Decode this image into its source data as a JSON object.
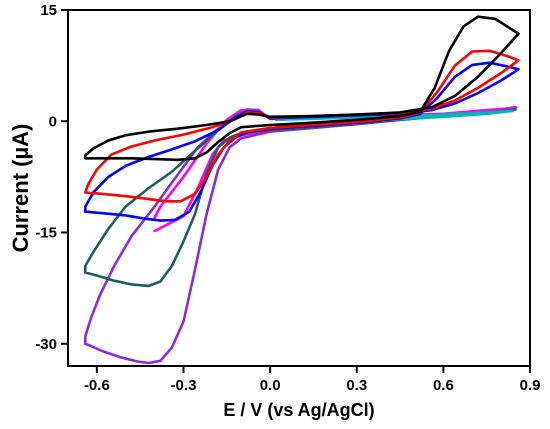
{
  "chart_data": {
    "type": "line",
    "title": "",
    "xlabel": "E / V (vs Ag/AgCl)",
    "ylabel": "Current (µA)",
    "xlim": [
      -0.7,
      0.9
    ],
    "ylim": [
      -33,
      15
    ],
    "xticks": [
      -0.6,
      -0.3,
      0.0,
      0.3,
      0.6,
      0.9
    ],
    "xtick_labels": [
      "-0.6",
      "-0.3",
      "0.0",
      "0.3",
      "0.6",
      "0.9"
    ],
    "yticks": [
      15,
      0,
      -15,
      -30
    ],
    "ytick_labels": [
      "15",
      "0",
      "-15",
      "-30"
    ],
    "grid": false,
    "legend": "none",
    "series": [
      {
        "color": "#8a2be2",
        "points": [
          [
            -0.64,
            -30
          ],
          [
            -0.62,
            -30.3
          ],
          [
            -0.58,
            -31
          ],
          [
            -0.52,
            -31.8
          ],
          [
            -0.46,
            -32.4
          ],
          [
            -0.42,
            -32.6
          ],
          [
            -0.38,
            -32.3
          ],
          [
            -0.34,
            -30.5
          ],
          [
            -0.3,
            -27
          ],
          [
            -0.26,
            -20
          ],
          [
            -0.22,
            -12.5
          ],
          [
            -0.18,
            -6.5
          ],
          [
            -0.14,
            -3.5
          ],
          [
            -0.1,
            -2.3
          ],
          [
            0.0,
            -1.4
          ],
          [
            0.15,
            -0.9
          ],
          [
            0.3,
            -0.4
          ],
          [
            0.45,
            0.2
          ],
          [
            0.6,
            0.7
          ],
          [
            0.75,
            1.3
          ],
          [
            0.85,
            1.9
          ],
          [
            0.8,
            1.4
          ],
          [
            0.7,
            1.0
          ],
          [
            0.55,
            0.7
          ],
          [
            0.4,
            0.6
          ],
          [
            0.2,
            0.5
          ],
          [
            0.05,
            0.4
          ],
          [
            0.0,
            0.3
          ],
          [
            -0.04,
            1.5
          ],
          [
            -0.08,
            1.6
          ],
          [
            -0.12,
            0.8
          ],
          [
            -0.18,
            -1.0
          ],
          [
            -0.25,
            -3.5
          ],
          [
            -0.32,
            -7.2
          ],
          [
            -0.4,
            -11.5
          ],
          [
            -0.48,
            -15.5
          ],
          [
            -0.54,
            -19.5
          ],
          [
            -0.59,
            -23.5
          ],
          [
            -0.62,
            -26.5
          ],
          [
            -0.64,
            -29
          ],
          [
            -0.64,
            -30
          ]
        ]
      },
      {
        "color": "#ff00ff",
        "points": [
          [
            -0.4,
            -14.8
          ],
          [
            -0.3,
            -12.8
          ],
          [
            -0.25,
            -9
          ],
          [
            -0.2,
            -4.5
          ],
          [
            -0.16,
            -2.6
          ],
          [
            -0.12,
            -2.0
          ],
          [
            0.0,
            -1.2
          ],
          [
            0.2,
            -0.3
          ],
          [
            0.4,
            0.3
          ],
          [
            0.6,
            0.8
          ],
          [
            0.75,
            1.3
          ],
          [
            0.85,
            1.8
          ],
          [
            0.75,
            1.5
          ],
          [
            0.6,
            1.0
          ],
          [
            0.4,
            0.8
          ],
          [
            0.2,
            0.6
          ],
          [
            0.0,
            0.4
          ],
          [
            -0.04,
            1.4
          ],
          [
            -0.1,
            1.5
          ],
          [
            -0.15,
            0.2
          ],
          [
            -0.22,
            -3
          ],
          [
            -0.3,
            -7.5
          ],
          [
            -0.38,
            -11.5
          ],
          [
            -0.4,
            -13
          ]
        ]
      },
      {
        "color": "#1f5f5b",
        "points": [
          [
            -0.64,
            -20.4
          ],
          [
            -0.6,
            -20.8
          ],
          [
            -0.54,
            -21.5
          ],
          [
            -0.48,
            -22
          ],
          [
            -0.42,
            -22.2
          ],
          [
            -0.38,
            -21.6
          ],
          [
            -0.34,
            -19.5
          ],
          [
            -0.3,
            -16.2
          ],
          [
            -0.26,
            -12.5
          ],
          [
            -0.22,
            -7
          ],
          [
            -0.18,
            -3.5
          ],
          [
            -0.14,
            -2.2
          ],
          [
            -0.1,
            -1.6
          ],
          [
            0.0,
            -1.2
          ],
          [
            0.15,
            -0.8
          ],
          [
            0.3,
            -0.3
          ],
          [
            0.45,
            0.2
          ],
          [
            0.6,
            0.7
          ],
          [
            0.75,
            1.2
          ],
          [
            0.85,
            1.6
          ],
          [
            0.75,
            1.2
          ],
          [
            0.6,
            0.9
          ],
          [
            0.4,
            0.7
          ],
          [
            0.2,
            0.5
          ],
          [
            0.0,
            0.4
          ],
          [
            -0.04,
            1.3
          ],
          [
            -0.08,
            1.4
          ],
          [
            -0.12,
            0.7
          ],
          [
            -0.18,
            -1.2
          ],
          [
            -0.26,
            -4
          ],
          [
            -0.34,
            -6.8
          ],
          [
            -0.42,
            -9
          ],
          [
            -0.5,
            -11.5
          ],
          [
            -0.56,
            -14.5
          ],
          [
            -0.61,
            -17.5
          ],
          [
            -0.64,
            -19.5
          ],
          [
            -0.64,
            -20.4
          ]
        ]
      },
      {
        "color": "#00b8b8",
        "points": [
          [
            0.02,
            -0.6
          ],
          [
            0.2,
            -0.2
          ],
          [
            0.4,
            0.2
          ],
          [
            0.6,
            0.6
          ],
          [
            0.75,
            1.0
          ],
          [
            0.84,
            1.4
          ],
          [
            0.75,
            1.2
          ],
          [
            0.6,
            0.9
          ],
          [
            0.4,
            0.6
          ],
          [
            0.2,
            0.4
          ],
          [
            0.02,
            0.2
          ]
        ]
      },
      {
        "color": "#0000ff",
        "points": [
          [
            -0.64,
            -12.2
          ],
          [
            -0.58,
            -12.4
          ],
          [
            -0.5,
            -12.7
          ],
          [
            -0.44,
            -13.1
          ],
          [
            -0.38,
            -13.4
          ],
          [
            -0.33,
            -13.3
          ],
          [
            -0.28,
            -12.2
          ],
          [
            -0.24,
            -9.5
          ],
          [
            -0.2,
            -6
          ],
          [
            -0.16,
            -3.5
          ],
          [
            -0.12,
            -2.2
          ],
          [
            -0.08,
            -1.5
          ],
          [
            0.0,
            -1.0
          ],
          [
            0.15,
            -0.6
          ],
          [
            0.3,
            -0.2
          ],
          [
            0.45,
            0.4
          ],
          [
            0.52,
            1.0
          ],
          [
            0.58,
            3.2
          ],
          [
            0.64,
            6.0
          ],
          [
            0.7,
            7.6
          ],
          [
            0.76,
            7.9
          ],
          [
            0.82,
            7.4
          ],
          [
            0.86,
            7.0
          ],
          [
            0.8,
            5.5
          ],
          [
            0.72,
            3.8
          ],
          [
            0.64,
            2.4
          ],
          [
            0.56,
            1.5
          ],
          [
            0.45,
            1.0
          ],
          [
            0.3,
            0.8
          ],
          [
            0.15,
            0.6
          ],
          [
            0.0,
            0.4
          ],
          [
            -0.04,
            1.2
          ],
          [
            -0.08,
            1.3
          ],
          [
            -0.12,
            0.5
          ],
          [
            -0.18,
            -1.2
          ],
          [
            -0.26,
            -2.7
          ],
          [
            -0.34,
            -3.8
          ],
          [
            -0.42,
            -4.8
          ],
          [
            -0.5,
            -6
          ],
          [
            -0.56,
            -7.5
          ],
          [
            -0.61,
            -9.5
          ],
          [
            -0.64,
            -11.5
          ],
          [
            -0.64,
            -12.2
          ]
        ]
      },
      {
        "color": "#ff0000",
        "points": [
          [
            -0.64,
            -9.6
          ],
          [
            -0.58,
            -9.8
          ],
          [
            -0.5,
            -10.1
          ],
          [
            -0.42,
            -10.5
          ],
          [
            -0.36,
            -10.8
          ],
          [
            -0.31,
            -10.8
          ],
          [
            -0.26,
            -9.8
          ],
          [
            -0.22,
            -7.5
          ],
          [
            -0.18,
            -4.5
          ],
          [
            -0.14,
            -2.6
          ],
          [
            -0.1,
            -1.5
          ],
          [
            0.0,
            -0.9
          ],
          [
            0.15,
            -0.5
          ],
          [
            0.3,
            -0.1
          ],
          [
            0.45,
            0.5
          ],
          [
            0.52,
            1.2
          ],
          [
            0.58,
            4.0
          ],
          [
            0.64,
            7.5
          ],
          [
            0.7,
            9.4
          ],
          [
            0.76,
            9.5
          ],
          [
            0.82,
            8.8
          ],
          [
            0.86,
            8.2
          ],
          [
            0.8,
            6.5
          ],
          [
            0.72,
            4.5
          ],
          [
            0.64,
            2.8
          ],
          [
            0.56,
            1.7
          ],
          [
            0.45,
            1.1
          ],
          [
            0.3,
            0.9
          ],
          [
            0.15,
            0.7
          ],
          [
            0.0,
            0.5
          ],
          [
            -0.04,
            1.1
          ],
          [
            -0.08,
            1.2
          ],
          [
            -0.12,
            0.3
          ],
          [
            -0.2,
            -0.8
          ],
          [
            -0.3,
            -1.8
          ],
          [
            -0.4,
            -2.6
          ],
          [
            -0.48,
            -3.4
          ],
          [
            -0.55,
            -4.5
          ],
          [
            -0.6,
            -6.5
          ],
          [
            -0.63,
            -8.5
          ],
          [
            -0.64,
            -9.6
          ]
        ]
      },
      {
        "color": "#000000",
        "points": [
          [
            -0.64,
            -5.0
          ],
          [
            -0.56,
            -5.0
          ],
          [
            -0.48,
            -5.0
          ],
          [
            -0.4,
            -5.1
          ],
          [
            -0.32,
            -5.2
          ],
          [
            -0.26,
            -5.0
          ],
          [
            -0.22,
            -4.2
          ],
          [
            -0.18,
            -2.8
          ],
          [
            -0.14,
            -1.6
          ],
          [
            -0.1,
            -0.8
          ],
          [
            0.0,
            -0.5
          ],
          [
            0.15,
            -0.2
          ],
          [
            0.3,
            0.2
          ],
          [
            0.45,
            0.7
          ],
          [
            0.52,
            1.3
          ],
          [
            0.57,
            4.5
          ],
          [
            0.62,
            9.5
          ],
          [
            0.67,
            12.8
          ],
          [
            0.72,
            14.1
          ],
          [
            0.78,
            13.8
          ],
          [
            0.82,
            12.8
          ],
          [
            0.86,
            11.8
          ],
          [
            0.8,
            9.2
          ],
          [
            0.72,
            6.0
          ],
          [
            0.64,
            3.4
          ],
          [
            0.56,
            1.9
          ],
          [
            0.45,
            1.2
          ],
          [
            0.3,
            0.9
          ],
          [
            0.15,
            0.7
          ],
          [
            0.0,
            0.6
          ],
          [
            -0.04,
            0.9
          ],
          [
            -0.08,
            1.0
          ],
          [
            -0.14,
            0.0
          ],
          [
            -0.22,
            -0.5
          ],
          [
            -0.32,
            -1.0
          ],
          [
            -0.42,
            -1.4
          ],
          [
            -0.5,
            -1.9
          ],
          [
            -0.56,
            -2.6
          ],
          [
            -0.61,
            -3.6
          ],
          [
            -0.64,
            -4.6
          ],
          [
            -0.64,
            -5.0
          ]
        ]
      }
    ]
  }
}
